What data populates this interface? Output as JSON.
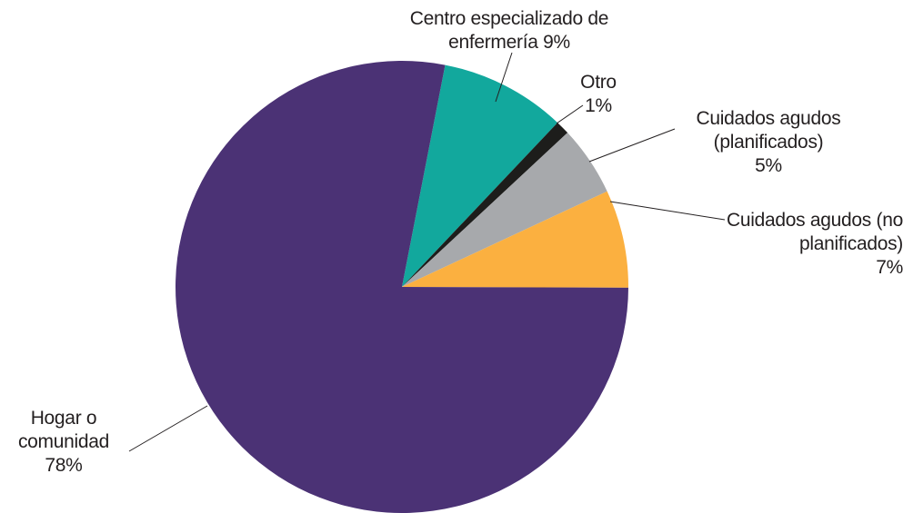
{
  "chart_data": {
    "type": "pie",
    "categories": [
      "Centro especializado de enfermería",
      "Otro",
      "Cuidados agudos (planificados)",
      "Cuidados agudos (no planificados)",
      "Hogar o comunidad"
    ],
    "values": [
      9,
      1,
      5,
      7,
      78
    ],
    "value_labels": [
      "9%",
      "1%",
      "5%",
      "7%",
      "78%"
    ],
    "colors": [
      "#12a89d",
      "#1d1d1b",
      "#a7a9ac",
      "#fbb040",
      "#4b3275"
    ]
  }
}
